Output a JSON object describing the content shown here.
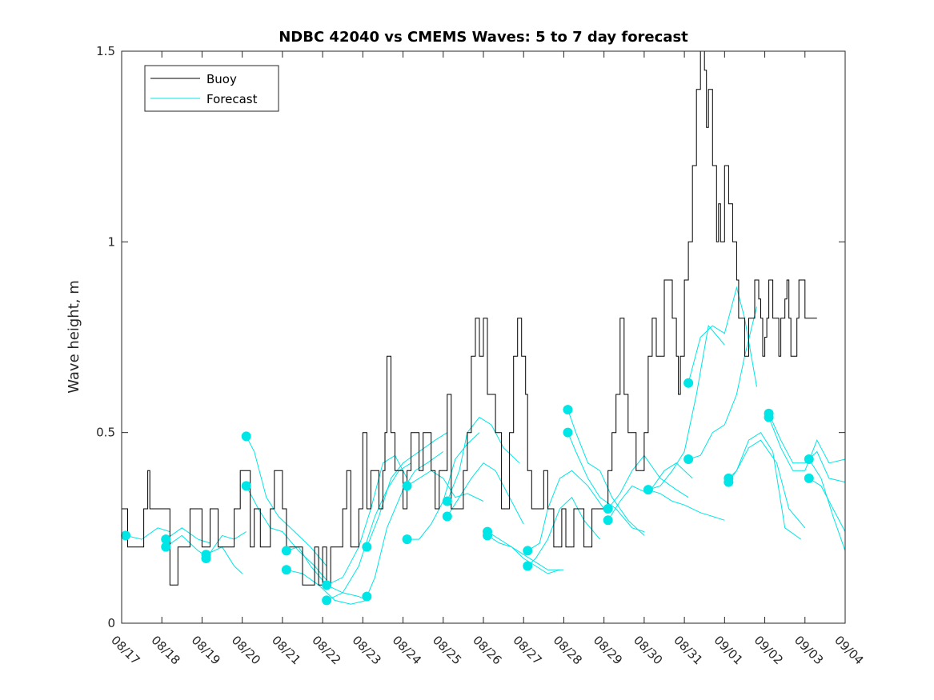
{
  "chart_data": {
    "type": "line",
    "title": "NDBC 42040 vs CMEMS Waves: 5 to 7 day forecast",
    "xlabel": "",
    "ylabel": "Wave height, m",
    "xlim": [
      0,
      18
    ],
    "ylim": [
      0,
      1.5
    ],
    "x_ticks": [
      0,
      1,
      2,
      3,
      4,
      5,
      6,
      7,
      8,
      9,
      10,
      11,
      12,
      13,
      14,
      15,
      16,
      17,
      18
    ],
    "x_tick_labels": [
      "08/17",
      "08/18",
      "08/19",
      "08/20",
      "08/21",
      "08/22",
      "08/23",
      "08/24",
      "08/25",
      "08/26",
      "08/27",
      "08/28",
      "08/29",
      "08/30",
      "08/31",
      "09/01",
      "09/02",
      "09/03",
      "09/04"
    ],
    "y_ticks": [
      0,
      0.5,
      1,
      1.5
    ],
    "y_tick_labels": [
      "0",
      "0.5",
      "1",
      "1.5"
    ],
    "legend": {
      "position": "top-left",
      "entries": [
        {
          "label": "Buoy",
          "color": "#000000"
        },
        {
          "label": "Forecast",
          "color": "#00e5e5"
        }
      ]
    },
    "colors": {
      "buoy": "#000000",
      "forecast": "#00e5e5"
    },
    "buoy": {
      "x": [
        0,
        0.15,
        0.3,
        0.45,
        0.55,
        0.65,
        0.7,
        0.9,
        1.1,
        1.2,
        1.25,
        1.4,
        1.5,
        1.7,
        1.9,
        2.0,
        2.2,
        2.4,
        2.6,
        2.8,
        2.95,
        3.1,
        3.2,
        3.3,
        3.45,
        3.6,
        3.7,
        3.8,
        3.9,
        4.0,
        4.1,
        4.3,
        4.4,
        4.5,
        4.65,
        4.8,
        4.9,
        5.0,
        5.1,
        5.2,
        5.3,
        5.5,
        5.6,
        5.7,
        5.8,
        5.9,
        6.0,
        6.1,
        6.15,
        6.2,
        6.3,
        6.4,
        6.5,
        6.55,
        6.6,
        6.7,
        6.8,
        6.9,
        7.0,
        7.1,
        7.2,
        7.3,
        7.4,
        7.5,
        7.6,
        7.7,
        7.8,
        7.9,
        8.0,
        8.1,
        8.2,
        8.3,
        8.4,
        8.5,
        8.6,
        8.7,
        8.8,
        8.9,
        9.0,
        9.1,
        9.2,
        9.3,
        9.45,
        9.55,
        9.65,
        9.75,
        9.85,
        9.95,
        10.05,
        10.1,
        10.2,
        10.3,
        10.4,
        10.5,
        10.6,
        10.7,
        10.75,
        10.85,
        10.95,
        11.05,
        11.15,
        11.25,
        11.35,
        11.5,
        11.6,
        11.7,
        11.8,
        11.9,
        12.0,
        12.1,
        12.2,
        12.3,
        12.4,
        12.5,
        12.6,
        12.7,
        12.8,
        12.9,
        13.0,
        13.1,
        13.2,
        13.3,
        13.4,
        13.5,
        13.6,
        13.7,
        13.8,
        13.85,
        13.9,
        14.0,
        14.1,
        14.2,
        14.3,
        14.4,
        14.5,
        14.55,
        14.6,
        14.7,
        14.8,
        14.85,
        14.9,
        15.0,
        15.1,
        15.2,
        15.3,
        15.35,
        15.4,
        15.5,
        15.6,
        15.7,
        15.75,
        15.8,
        15.85,
        15.9,
        15.95,
        16.0,
        16.05,
        16.1,
        16.2,
        16.25,
        16.3,
        16.35,
        16.4,
        16.5,
        16.55,
        16.6,
        16.65,
        16.7,
        16.8,
        16.85,
        16.9,
        17.0,
        17.1,
        17.2,
        17.3
      ],
      "y": [
        0.3,
        0.2,
        0.2,
        0.2,
        0.3,
        0.4,
        0.3,
        0.3,
        0.3,
        0.1,
        0.1,
        0.2,
        0.2,
        0.3,
        0.3,
        0.2,
        0.3,
        0.2,
        0.2,
        0.3,
        0.4,
        0.4,
        0.2,
        0.3,
        0.2,
        0.2,
        0.3,
        0.4,
        0.4,
        0.3,
        0.2,
        0.2,
        0.2,
        0.1,
        0.1,
        0.2,
        0.1,
        0.2,
        0.1,
        0.2,
        0.2,
        0.3,
        0.4,
        0.2,
        0.2,
        0.3,
        0.5,
        0.3,
        0.3,
        0.4,
        0.4,
        0.3,
        0.4,
        0.5,
        0.7,
        0.5,
        0.4,
        0.4,
        0.3,
        0.4,
        0.5,
        0.5,
        0.4,
        0.5,
        0.5,
        0.4,
        0.3,
        0.4,
        0.4,
        0.6,
        0.3,
        0.3,
        0.3,
        0.4,
        0.5,
        0.7,
        0.8,
        0.7,
        0.8,
        0.6,
        0.6,
        0.5,
        0.3,
        0.3,
        0.5,
        0.7,
        0.8,
        0.7,
        0.6,
        0.4,
        0.3,
        0.3,
        0.3,
        0.4,
        0.3,
        0.3,
        0.2,
        0.2,
        0.3,
        0.2,
        0.2,
        0.3,
        0.3,
        0.2,
        0.2,
        0.3,
        0.3,
        0.3,
        0.3,
        0.4,
        0.5,
        0.6,
        0.8,
        0.6,
        0.5,
        0.5,
        0.4,
        0.4,
        0.5,
        0.7,
        0.8,
        0.7,
        0.7,
        0.9,
        0.9,
        0.8,
        0.7,
        0.6,
        0.7,
        0.9,
        1.0,
        1.2,
        1.4,
        1.5,
        1.45,
        1.3,
        1.4,
        1.2,
        1.0,
        1.1,
        1.0,
        1.2,
        1.1,
        1.0,
        0.9,
        0.8,
        0.8,
        0.7,
        0.8,
        0.8,
        0.9,
        0.9,
        0.85,
        0.8,
        0.7,
        0.75,
        0.8,
        0.9,
        0.8,
        0.8,
        0.8,
        0.7,
        0.8,
        0.85,
        0.9,
        0.8,
        0.7,
        0.7,
        0.8,
        0.9,
        0.9,
        0.8,
        0.8,
        0.8,
        0.8
      ],
      "y_clamped": true
    },
    "forecast_series": [
      {
        "x": [
          0.1,
          0.5,
          0.9,
          1.2
        ],
        "y": [
          0.23,
          0.22,
          0.25,
          0.24
        ]
      },
      {
        "x": [
          1.1,
          1.5,
          1.9,
          2.2
        ],
        "y": [
          0.22,
          0.25,
          0.22,
          0.21
        ]
      },
      {
        "x": [
          1.1,
          1.5,
          1.9,
          2.2
        ],
        "y": [
          0.2,
          0.23,
          0.19,
          0.17
        ]
      },
      {
        "x": [
          2.1,
          2.5,
          2.8,
          3.0
        ],
        "y": [
          0.18,
          0.2,
          0.15,
          0.13
        ]
      },
      {
        "x": [
          2.1,
          2.5,
          2.8,
          3.1
        ],
        "y": [
          0.17,
          0.23,
          0.22,
          0.24
        ]
      },
      {
        "x": [
          3.1,
          3.3,
          3.6,
          3.9,
          4.3,
          4.7,
          5.1
        ],
        "y": [
          0.49,
          0.45,
          0.33,
          0.28,
          0.24,
          0.2,
          0.15
        ]
      },
      {
        "x": [
          3.1,
          3.4,
          3.7,
          4.0,
          4.4,
          4.8,
          5.2
        ],
        "y": [
          0.36,
          0.3,
          0.25,
          0.24,
          0.19,
          0.15,
          0.1
        ]
      },
      {
        "x": [
          4.1,
          4.4,
          4.7,
          5.1,
          5.5,
          5.9,
          6.1
        ],
        "y": [
          0.19,
          0.2,
          0.15,
          0.1,
          0.08,
          0.07,
          0.06
        ]
      },
      {
        "x": [
          4.1,
          4.5,
          4.9,
          5.3,
          5.7,
          6.1
        ],
        "y": [
          0.14,
          0.13,
          0.1,
          0.06,
          0.05,
          0.06
        ]
      },
      {
        "x": [
          5.1,
          5.5,
          5.9,
          6.2,
          6.5,
          6.8,
          7.1
        ],
        "y": [
          0.1,
          0.12,
          0.2,
          0.3,
          0.42,
          0.44,
          0.38
        ]
      },
      {
        "x": [
          5.1,
          5.5,
          5.9,
          6.3,
          6.6,
          6.9,
          7.2
        ],
        "y": [
          0.06,
          0.08,
          0.15,
          0.28,
          0.35,
          0.4,
          0.42
        ]
      },
      {
        "x": [
          6.1,
          6.4,
          6.7,
          7.0,
          7.4,
          7.8,
          8.1
        ],
        "y": [
          0.2,
          0.28,
          0.38,
          0.42,
          0.45,
          0.48,
          0.5
        ]
      },
      {
        "x": [
          6.1,
          6.3,
          6.6,
          7.0,
          7.3,
          7.6,
          8.0
        ],
        "y": [
          0.07,
          0.12,
          0.25,
          0.35,
          0.4,
          0.42,
          0.45
        ]
      },
      {
        "x": [
          7.1,
          7.4,
          7.7,
          8.0,
          8.3,
          8.6,
          9.0
        ],
        "y": [
          0.36,
          0.38,
          0.4,
          0.38,
          0.33,
          0.34,
          0.32
        ]
      },
      {
        "x": [
          7.1,
          7.4,
          7.7,
          8.0,
          8.3,
          8.6,
          8.9
        ],
        "y": [
          0.22,
          0.22,
          0.26,
          0.32,
          0.43,
          0.47,
          0.5
        ]
      },
      {
        "x": [
          8.1,
          8.4,
          8.6,
          8.9,
          9.2,
          9.5,
          9.9
        ],
        "y": [
          0.32,
          0.4,
          0.5,
          0.54,
          0.52,
          0.46,
          0.42
        ]
      },
      {
        "x": [
          8.1,
          8.4,
          8.7,
          9.0,
          9.3,
          9.6,
          10.0
        ],
        "y": [
          0.28,
          0.33,
          0.38,
          0.42,
          0.4,
          0.34,
          0.26
        ]
      },
      {
        "x": [
          9.1,
          9.4,
          9.7,
          10.0,
          10.3,
          10.6,
          11.0
        ],
        "y": [
          0.24,
          0.22,
          0.2,
          0.18,
          0.16,
          0.14,
          0.14
        ]
      },
      {
        "x": [
          9.1,
          9.4,
          9.7,
          10.0,
          10.3,
          10.6,
          10.9
        ],
        "y": [
          0.23,
          0.21,
          0.2,
          0.17,
          0.15,
          0.13,
          0.14
        ]
      },
      {
        "x": [
          10.1,
          10.4,
          10.6,
          10.9,
          11.2,
          11.6,
          12.0
        ],
        "y": [
          0.19,
          0.21,
          0.3,
          0.38,
          0.4,
          0.36,
          0.3
        ]
      },
      {
        "x": [
          10.1,
          10.3,
          10.6,
          10.9,
          11.2,
          11.5,
          11.9
        ],
        "y": [
          0.15,
          0.17,
          0.22,
          0.3,
          0.33,
          0.27,
          0.22
        ]
      },
      {
        "x": [
          11.1,
          11.3,
          11.6,
          11.9,
          12.2,
          12.6,
          13.0
        ],
        "y": [
          0.56,
          0.5,
          0.42,
          0.4,
          0.33,
          0.27,
          0.23
        ]
      },
      {
        "x": [
          11.1,
          11.3,
          11.6,
          11.9,
          12.3,
          12.7,
          13.0
        ],
        "y": [
          0.5,
          0.45,
          0.38,
          0.33,
          0.3,
          0.25,
          0.24
        ]
      },
      {
        "x": [
          12.1,
          12.4,
          12.7,
          13.0,
          13.4,
          13.8,
          14.1
        ],
        "y": [
          0.3,
          0.34,
          0.4,
          0.44,
          0.38,
          0.35,
          0.33
        ]
      },
      {
        "x": [
          12.1,
          12.4,
          12.7,
          13.1,
          13.5,
          13.8,
          14.2
        ],
        "y": [
          0.27,
          0.32,
          0.36,
          0.34,
          0.4,
          0.42,
          0.38
        ]
      },
      {
        "x": [
          13.1,
          13.4,
          13.7,
          14.0,
          14.3,
          14.6,
          15.0
        ],
        "y": [
          0.35,
          0.36,
          0.4,
          0.45,
          0.6,
          0.78,
          0.73
        ]
      },
      {
        "x": [
          13.1,
          13.4,
          13.7,
          14.0,
          14.4,
          14.7,
          15.0
        ],
        "y": [
          0.35,
          0.34,
          0.32,
          0.31,
          0.29,
          0.28,
          0.27
        ]
      },
      {
        "x": [
          14.1,
          14.4,
          14.7,
          15.0,
          15.3,
          15.5,
          15.8
        ],
        "y": [
          0.63,
          0.75,
          0.78,
          0.76,
          0.88,
          0.8,
          0.62
        ]
      },
      {
        "x": [
          14.1,
          14.4,
          14.7,
          15.0,
          15.3,
          15.5,
          15.8
        ],
        "y": [
          0.43,
          0.44,
          0.5,
          0.52,
          0.6,
          0.7,
          0.83
        ]
      },
      {
        "x": [
          15.1,
          15.3,
          15.6,
          15.9,
          16.2,
          16.5,
          16.9
        ],
        "y": [
          0.38,
          0.4,
          0.48,
          0.5,
          0.45,
          0.25,
          0.22
        ]
      },
      {
        "x": [
          15.1,
          15.3,
          15.6,
          15.9,
          16.3,
          16.6,
          17.0
        ],
        "y": [
          0.37,
          0.4,
          0.46,
          0.48,
          0.42,
          0.3,
          0.25
        ]
      },
      {
        "x": [
          16.1,
          16.4,
          16.7,
          17.0,
          17.3,
          17.6,
          18.0
        ],
        "y": [
          0.55,
          0.48,
          0.42,
          0.42,
          0.45,
          0.38,
          0.37
        ]
      },
      {
        "x": [
          16.1,
          16.4,
          16.7,
          17.0,
          17.3,
          17.6,
          18.0
        ],
        "y": [
          0.54,
          0.46,
          0.4,
          0.4,
          0.48,
          0.42,
          0.43
        ]
      },
      {
        "x": [
          17.1,
          17.4,
          17.7,
          18.0
        ],
        "y": [
          0.43,
          0.38,
          0.28,
          0.19
        ]
      },
      {
        "x": [
          17.1,
          17.4,
          17.7,
          18.0
        ],
        "y": [
          0.38,
          0.36,
          0.3,
          0.24
        ]
      }
    ],
    "forecast_markers": {
      "x": [
        0.1,
        1.1,
        1.1,
        2.1,
        2.1,
        3.1,
        3.1,
        4.1,
        4.1,
        5.1,
        5.1,
        6.1,
        6.1,
        7.1,
        7.1,
        8.1,
        8.1,
        9.1,
        9.1,
        10.1,
        10.1,
        11.1,
        11.1,
        12.1,
        12.1,
        13.1,
        14.1,
        14.1,
        15.1,
        15.1,
        16.1,
        16.1,
        17.1,
        17.1
      ],
      "y": [
        0.23,
        0.22,
        0.2,
        0.18,
        0.17,
        0.49,
        0.36,
        0.19,
        0.14,
        0.1,
        0.06,
        0.2,
        0.07,
        0.36,
        0.22,
        0.32,
        0.28,
        0.24,
        0.23,
        0.19,
        0.15,
        0.56,
        0.5,
        0.3,
        0.27,
        0.35,
        0.63,
        0.43,
        0.38,
        0.37,
        0.55,
        0.54,
        0.43,
        0.38
      ]
    }
  }
}
